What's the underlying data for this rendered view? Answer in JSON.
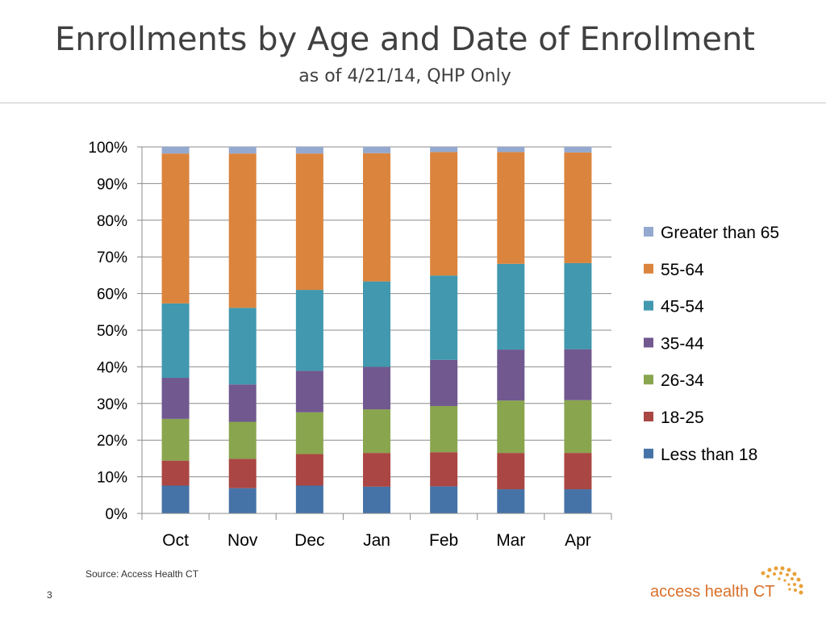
{
  "slide": {
    "title": "Enrollments by Age and Date of Enrollment",
    "subtitle": "as of 4/21/14, QHP Only",
    "source": "Source: Access Health CT",
    "slide_number": "3",
    "logo_text": "access health CT"
  },
  "chart_data": {
    "type": "bar",
    "stacked": true,
    "title": "",
    "xlabel": "",
    "ylabel": "",
    "ylim": [
      0,
      100
    ],
    "y_ticks": [
      "0%",
      "10%",
      "20%",
      "30%",
      "40%",
      "50%",
      "60%",
      "70%",
      "80%",
      "90%",
      "100%"
    ],
    "categories": [
      "Oct",
      "Nov",
      "Dec",
      "Jan",
      "Feb",
      "Mar",
      "Apr"
    ],
    "legend_position": "right",
    "grid": true,
    "series": [
      {
        "name": "Less than 18",
        "color": "#4573a7",
        "values": [
          7.6,
          6.9,
          7.6,
          7.3,
          7.4,
          6.6,
          6.6
        ]
      },
      {
        "name": "18-25",
        "color": "#aa4643",
        "values": [
          6.8,
          8.0,
          8.6,
          9.2,
          9.3,
          9.9,
          9.9
        ]
      },
      {
        "name": "26-34",
        "color": "#89a54e",
        "values": [
          11.4,
          10.1,
          11.4,
          11.9,
          12.6,
          14.3,
          14.4
        ]
      },
      {
        "name": "35-44",
        "color": "#71588f",
        "values": [
          11.2,
          10.2,
          11.3,
          11.6,
          12.6,
          13.9,
          13.9
        ]
      },
      {
        "name": "45-54",
        "color": "#4198af",
        "values": [
          20.3,
          20.9,
          22.1,
          23.3,
          23.0,
          23.4,
          23.5
        ]
      },
      {
        "name": "55-64",
        "color": "#db843d",
        "values": [
          40.9,
          42.1,
          37.2,
          35.0,
          33.7,
          30.5,
          30.2
        ]
      },
      {
        "name": "Greater than 65",
        "color": "#93a9cf",
        "values": [
          1.8,
          1.8,
          1.8,
          1.7,
          1.4,
          1.4,
          1.5
        ]
      }
    ]
  }
}
